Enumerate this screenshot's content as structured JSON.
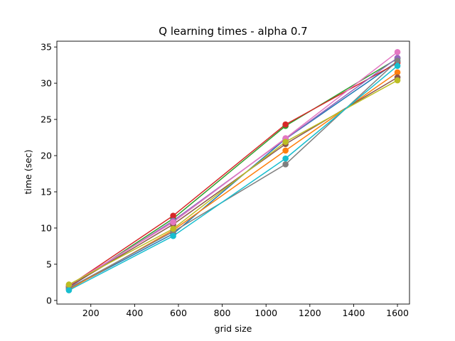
{
  "chart_data": {
    "type": "line",
    "title": "Q learning times - alpha 0.7",
    "xlabel": "grid size",
    "ylabel": "time (sec)",
    "xlim": [
      45,
      1655
    ],
    "ylim": [
      -0.5,
      35.8
    ],
    "x_ticks": [
      200,
      400,
      600,
      800,
      1000,
      1200,
      1400,
      1600
    ],
    "y_ticks": [
      0,
      5,
      10,
      15,
      20,
      25,
      30,
      35
    ],
    "grid": false,
    "legend": "none",
    "x": [
      100,
      576,
      1089,
      1600
    ],
    "series": [
      {
        "color": "#1f77b4",
        "values": [
          1.6,
          9.2,
          22.3,
          33.0
        ]
      },
      {
        "color": "#ff7f0e",
        "values": [
          1.5,
          9.7,
          20.7,
          31.5
        ]
      },
      {
        "color": "#2ca02c",
        "values": [
          1.8,
          11.3,
          24.1,
          33.4
        ]
      },
      {
        "color": "#d62728",
        "values": [
          2.0,
          11.7,
          24.3,
          32.8
        ]
      },
      {
        "color": "#9467bd",
        "values": [
          1.8,
          11.0,
          22.3,
          33.5
        ]
      },
      {
        "color": "#8c564b",
        "values": [
          1.9,
          10.5,
          21.6,
          30.8
        ]
      },
      {
        "color": "#e377c2",
        "values": [
          2.1,
          10.8,
          22.4,
          34.3
        ]
      },
      {
        "color": "#7f7f7f",
        "values": [
          1.7,
          9.5,
          18.8,
          33.1
        ]
      },
      {
        "color": "#bcbd22",
        "values": [
          2.2,
          9.9,
          21.9,
          30.4
        ]
      },
      {
        "color": "#17becf",
        "values": [
          1.4,
          8.9,
          19.6,
          32.4
        ]
      }
    ]
  }
}
